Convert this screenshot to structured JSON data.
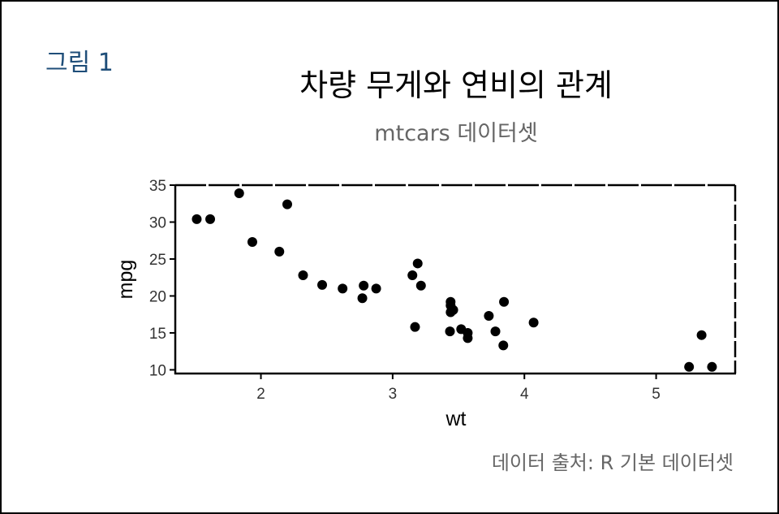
{
  "figure": {
    "label": "그림 1",
    "title": "차량 무게와 연비의 관계",
    "subtitle": "mtcars 데이터셋",
    "caption": "데이터 출처: R 기본 데이터셋"
  },
  "colors": {
    "point": "#000000",
    "frame": "#000000",
    "figure_label": "#1f4e79",
    "muted_text": "#666666",
    "tick_text": "#333333"
  },
  "chart_data": {
    "type": "scatter",
    "xlabel": "wt",
    "ylabel": "mpg",
    "xlim": [
      1.35,
      5.6
    ],
    "ylim": [
      9.5,
      35
    ],
    "x_ticks": [
      2,
      3,
      4,
      5
    ],
    "y_ticks": [
      10,
      15,
      20,
      25,
      30,
      35
    ],
    "grid": false,
    "series": [
      {
        "points": [
          {
            "x": 2.62,
            "y": 21.0
          },
          {
            "x": 2.875,
            "y": 21.0
          },
          {
            "x": 2.32,
            "y": 22.8
          },
          {
            "x": 3.215,
            "y": 21.4
          },
          {
            "x": 3.44,
            "y": 18.7
          },
          {
            "x": 3.46,
            "y": 18.1
          },
          {
            "x": 3.57,
            "y": 14.3
          },
          {
            "x": 3.19,
            "y": 24.4
          },
          {
            "x": 3.15,
            "y": 22.8
          },
          {
            "x": 3.44,
            "y": 19.2
          },
          {
            "x": 3.44,
            "y": 17.8
          },
          {
            "x": 4.07,
            "y": 16.4
          },
          {
            "x": 3.73,
            "y": 17.3
          },
          {
            "x": 3.78,
            "y": 15.2
          },
          {
            "x": 5.25,
            "y": 10.4
          },
          {
            "x": 5.424,
            "y": 10.4
          },
          {
            "x": 5.345,
            "y": 14.7
          },
          {
            "x": 2.2,
            "y": 32.4
          },
          {
            "x": 1.615,
            "y": 30.4
          },
          {
            "x": 1.835,
            "y": 33.9
          },
          {
            "x": 2.465,
            "y": 21.5
          },
          {
            "x": 3.52,
            "y": 15.5
          },
          {
            "x": 3.435,
            "y": 15.2
          },
          {
            "x": 3.84,
            "y": 13.3
          },
          {
            "x": 3.845,
            "y": 19.2
          },
          {
            "x": 1.935,
            "y": 27.3
          },
          {
            "x": 2.14,
            "y": 26.0
          },
          {
            "x": 1.513,
            "y": 30.4
          },
          {
            "x": 3.17,
            "y": 15.8
          },
          {
            "x": 2.77,
            "y": 19.7
          },
          {
            "x": 3.57,
            "y": 15.0
          },
          {
            "x": 2.78,
            "y": 21.4
          }
        ]
      }
    ]
  }
}
